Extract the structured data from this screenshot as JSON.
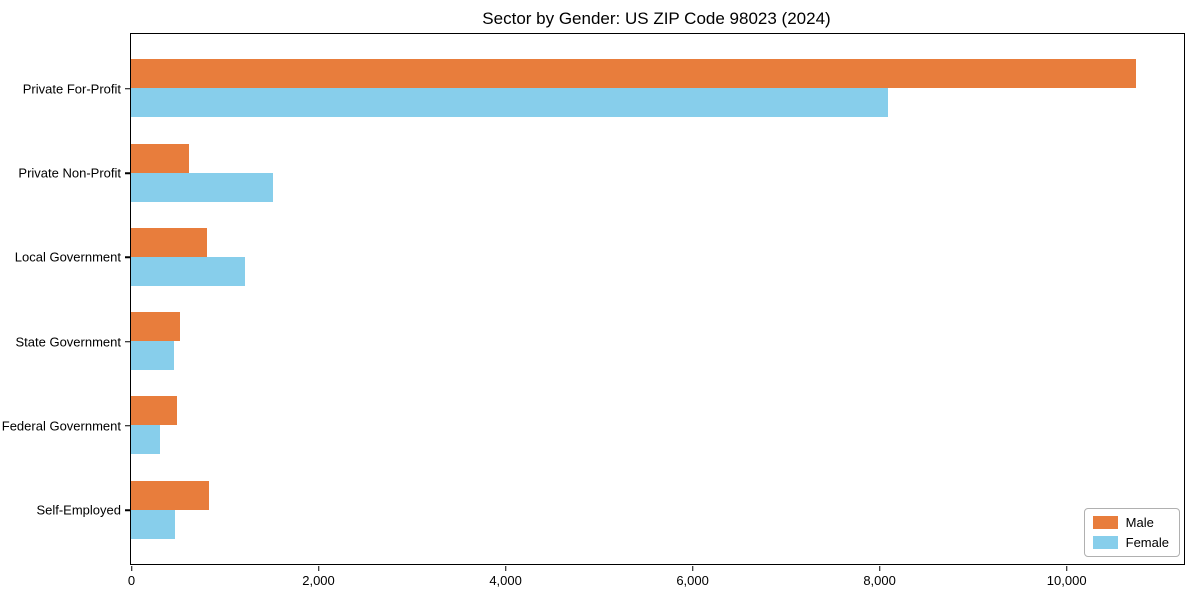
{
  "chart_data": {
    "type": "bar",
    "orientation": "horizontal",
    "title": "Sector by Gender: US ZIP Code 98023 (2024)",
    "categories": [
      "Private For-Profit",
      "Private Non-Profit",
      "Local Government",
      "State Government",
      "Federal Government",
      "Self-Employed"
    ],
    "series": [
      {
        "name": "Male",
        "color": "#e87d3c",
        "values": [
          10750,
          620,
          810,
          520,
          490,
          830
        ]
      },
      {
        "name": "Female",
        "color": "#87ceeb",
        "values": [
          8090,
          1515,
          1220,
          460,
          310,
          470
        ]
      }
    ],
    "xlabel": "",
    "ylabel": "",
    "xlim": [
      0,
      11260
    ],
    "xticks": [
      {
        "value": 0,
        "label": "0"
      },
      {
        "value": 2000,
        "label": "2,000"
      },
      {
        "value": 4000,
        "label": "4,000"
      },
      {
        "value": 6000,
        "label": "6,000"
      },
      {
        "value": 8000,
        "label": "8,000"
      },
      {
        "value": 10000,
        "label": "10,000"
      }
    ],
    "grid": false,
    "legend": {
      "position": "lower right",
      "entries": [
        "Male",
        "Female"
      ]
    }
  }
}
